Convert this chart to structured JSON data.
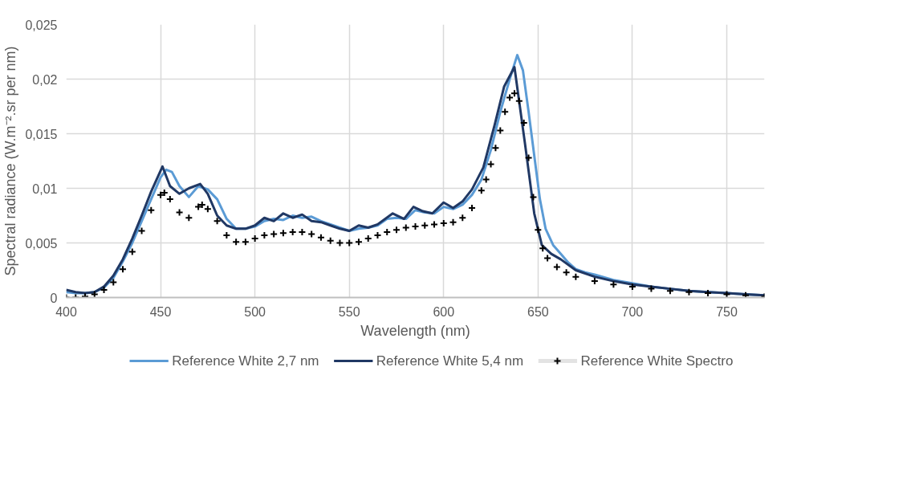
{
  "chart_data": {
    "type": "line",
    "xlabel": "Wavelength (nm)",
    "ylabel": "Spectral radiance (W.m⁻².sr per nm)",
    "xlim": [
      400,
      770
    ],
    "xticks": [
      400,
      450,
      500,
      550,
      600,
      650,
      700,
      750
    ],
    "ylim": [
      0,
      0.025
    ],
    "yticks": [
      {
        "value": 0,
        "label": "0"
      },
      {
        "value": 0.005,
        "label": "0,005"
      },
      {
        "value": 0.01,
        "label": "0,01"
      },
      {
        "value": 0.015,
        "label": "0,015"
      },
      {
        "value": 0.02,
        "label": "0,02"
      },
      {
        "value": 0.025,
        "label": "0,025"
      }
    ],
    "grid": true,
    "legend": "bottom",
    "line_style": "solid",
    "series": [
      {
        "name": "Reference White 2,7 nm",
        "color": "#5b9bd5",
        "marker": "none",
        "x": [
          400,
          405,
          410,
          415,
          420,
          425,
          430,
          435,
          440,
          445,
          450,
          453,
          456,
          460,
          465,
          470,
          475,
          480,
          485,
          490,
          495,
          500,
          505,
          510,
          515,
          520,
          525,
          530,
          535,
          540,
          545,
          550,
          555,
          560,
          565,
          570,
          575,
          580,
          585,
          590,
          595,
          600,
          605,
          610,
          615,
          620,
          625,
          630,
          635,
          639,
          642,
          645,
          648,
          651,
          654,
          658,
          662,
          666,
          670,
          675,
          680,
          690,
          700,
          710,
          720,
          730,
          740,
          750,
          760,
          770
        ],
        "values": [
          0.0005,
          0.0004,
          0.0004,
          0.0005,
          0.0009,
          0.0018,
          0.0033,
          0.005,
          0.007,
          0.009,
          0.011,
          0.0117,
          0.0115,
          0.0102,
          0.0092,
          0.0102,
          0.0099,
          0.009,
          0.0072,
          0.0063,
          0.0063,
          0.0065,
          0.007,
          0.0072,
          0.0071,
          0.0075,
          0.0073,
          0.0074,
          0.007,
          0.0067,
          0.0064,
          0.0061,
          0.0063,
          0.0064,
          0.0066,
          0.0072,
          0.0073,
          0.0072,
          0.008,
          0.0078,
          0.0077,
          0.0083,
          0.0081,
          0.0085,
          0.0094,
          0.0108,
          0.0135,
          0.017,
          0.02,
          0.0222,
          0.0208,
          0.017,
          0.013,
          0.009,
          0.0063,
          0.0048,
          0.004,
          0.0032,
          0.0026,
          0.0023,
          0.0021,
          0.0016,
          0.0013,
          0.001,
          0.0008,
          0.0006,
          0.0005,
          0.0004,
          0.0003,
          0.0002
        ]
      },
      {
        "name": "Reference White 5,4 nm",
        "color": "#203864",
        "marker": "none",
        "x": [
          400,
          405,
          410,
          415,
          420,
          425,
          430,
          435,
          440,
          445,
          451,
          455,
          460,
          465,
          471,
          475,
          480,
          485,
          490,
          495,
          500,
          505,
          510,
          515,
          520,
          525,
          530,
          535,
          540,
          545,
          550,
          555,
          560,
          565,
          573,
          579,
          584,
          589,
          594,
          600,
          605,
          610,
          615,
          621,
          627,
          632,
          637.5,
          643,
          648,
          652,
          657,
          662,
          670,
          680,
          690,
          700,
          710,
          720,
          730,
          740,
          750,
          760,
          770
        ],
        "values": [
          0.0007,
          0.0005,
          0.0004,
          0.0005,
          0.001,
          0.002,
          0.0035,
          0.0054,
          0.0075,
          0.0097,
          0.012,
          0.0102,
          0.0095,
          0.01,
          0.0104,
          0.0095,
          0.0075,
          0.0066,
          0.0063,
          0.0063,
          0.0066,
          0.0073,
          0.007,
          0.0077,
          0.0073,
          0.0076,
          0.007,
          0.0069,
          0.0066,
          0.0063,
          0.0061,
          0.0066,
          0.0064,
          0.0067,
          0.0077,
          0.0072,
          0.0083,
          0.0079,
          0.0077,
          0.0087,
          0.0082,
          0.0088,
          0.0099,
          0.0119,
          0.0158,
          0.0193,
          0.0211,
          0.0142,
          0.0077,
          0.0048,
          0.004,
          0.0035,
          0.0025,
          0.0019,
          0.0015,
          0.0012,
          0.001,
          0.0008,
          0.0006,
          0.0005,
          0.0004,
          0.0003,
          0.0002
        ]
      },
      {
        "name": "Reference White Spectro",
        "color": "#000000",
        "type": "scatter",
        "marker": "cross",
        "x": [
          400,
          405,
          410,
          415,
          420,
          425,
          430,
          435,
          440,
          445,
          450,
          452,
          455,
          460,
          465,
          470,
          472,
          475,
          480,
          485,
          490,
          495,
          500,
          505,
          510,
          515,
          520,
          525,
          530,
          535,
          540,
          545,
          550,
          555,
          560,
          565,
          570,
          575,
          580,
          585,
          590,
          595,
          600,
          605,
          610,
          615,
          620,
          622.5,
          625,
          627.5,
          630,
          632.5,
          635,
          637.5,
          640,
          642.5,
          645,
          647.5,
          650,
          652.5,
          655,
          660,
          665,
          670,
          680,
          690,
          700,
          710,
          720,
          730,
          740,
          750,
          760,
          770
        ],
        "values": [
          0,
          0,
          0.0001,
          0.0003,
          0.0007,
          0.0014,
          0.0026,
          0.0042,
          0.0061,
          0.008,
          0.0094,
          0.0096,
          0.009,
          0.0078,
          0.0073,
          0.0083,
          0.0085,
          0.0081,
          0.007,
          0.0057,
          0.0051,
          0.0051,
          0.0054,
          0.0057,
          0.0058,
          0.0059,
          0.006,
          0.006,
          0.0058,
          0.0055,
          0.0052,
          0.005,
          0.005,
          0.0051,
          0.0054,
          0.0057,
          0.006,
          0.0062,
          0.0064,
          0.0065,
          0.0066,
          0.0067,
          0.0068,
          0.0069,
          0.0073,
          0.0082,
          0.0098,
          0.0108,
          0.0122,
          0.0137,
          0.0153,
          0.017,
          0.0183,
          0.0187,
          0.018,
          0.016,
          0.0128,
          0.0092,
          0.0062,
          0.0045,
          0.0036,
          0.0028,
          0.0023,
          0.0019,
          0.0015,
          0.0012,
          0.001,
          0.0008,
          0.0006,
          0.0005,
          0.0004,
          0.0003,
          0.0002,
          0.0001
        ]
      }
    ]
  }
}
